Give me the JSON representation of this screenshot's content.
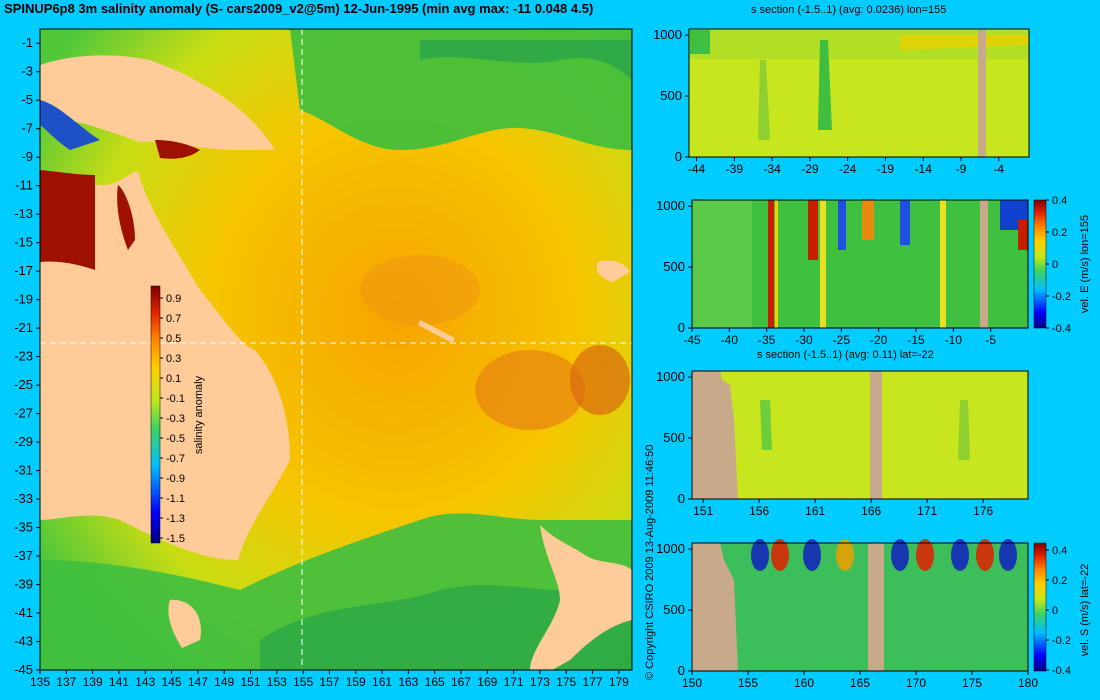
{
  "title": "SPINUP6p8 3m salinity anomaly (S- cars2009_v2@5m) 12-Jun-1995 (min avg max: -11 0.048 4.5)",
  "copyright": "© Copyright CSIRO 2009   13-Aug-2009 11:46:50",
  "colors": {
    "background": "#00CCFF",
    "land": "#FFCC99",
    "section_mask": "#C8A98A"
  },
  "chart_data": [
    {
      "type": "heatmap",
      "title": "SPINUP6p8 3m salinity anomaly (S- cars2009_v2@5m) 12-Jun-1995 (min avg max: -11 0.048 4.5)",
      "xlabel": "",
      "ylabel": "",
      "xlim": [
        135,
        180
      ],
      "ylim": [
        -45,
        0
      ],
      "x_ticks": [
        135,
        137,
        139,
        141,
        143,
        145,
        147,
        149,
        151,
        153,
        155,
        157,
        159,
        161,
        163,
        165,
        167,
        169,
        171,
        173,
        175,
        177,
        179
      ],
      "y_ticks": [
        -1,
        -3,
        -5,
        -7,
        -9,
        -11,
        -13,
        -15,
        -17,
        -19,
        -21,
        -23,
        -25,
        -27,
        -29,
        -31,
        -33,
        -35,
        -37,
        -39,
        -41,
        -43,
        -45
      ],
      "colorbar": {
        "label": "salinity anomaly",
        "ticks": [
          0.9,
          0.7,
          0.5,
          0.3,
          0.1,
          -0.1,
          -0.3,
          -0.5,
          -0.7,
          -0.9,
          -1.1,
          -1.3,
          -1.5
        ],
        "range": [
          -1.5,
          0.9
        ]
      },
      "section_lines": {
        "lon": 155,
        "lat": -22
      },
      "summary": {
        "min": -11,
        "avg": 0.048,
        "max": 4.5
      },
      "grid": false
    },
    {
      "type": "heatmap",
      "title": "s section (-1.5..1) (avg: 0.0236) lon=155",
      "xlim": [
        -45,
        0
      ],
      "ylim": [
        1050,
        0
      ],
      "x_ticks": [
        -44,
        -39,
        -34,
        -29,
        -24,
        -19,
        -14,
        -9,
        -4
      ],
      "y_ticks": [
        0,
        500,
        1000
      ],
      "avg": 0.0236
    },
    {
      "type": "heatmap",
      "title": "",
      "xlim": [
        -45,
        0
      ],
      "ylim": [
        1050,
        0
      ],
      "x_ticks": [
        -45,
        -40,
        -35,
        -30,
        -25,
        -20,
        -15,
        -10,
        -5
      ],
      "y_ticks": [
        0,
        500,
        1000
      ],
      "colorbar": {
        "label": "vel. E (m/s) lon=155",
        "ticks": [
          0.4,
          0.2,
          0,
          -0.2,
          -0.4
        ],
        "range": [
          -0.4,
          0.4
        ]
      }
    },
    {
      "type": "heatmap",
      "title": "s section (-1.5..1) (avg: 0.11) lat=-22",
      "xlim": [
        150,
        180
      ],
      "ylim": [
        1050,
        0
      ],
      "x_ticks": [
        151,
        156,
        161,
        166,
        171,
        176
      ],
      "y_ticks": [
        0,
        500,
        1000
      ],
      "avg": 0.11
    },
    {
      "type": "heatmap",
      "title": "",
      "xlim": [
        150,
        180
      ],
      "ylim": [
        1050,
        0
      ],
      "x_ticks": [
        150,
        155,
        160,
        165,
        170,
        175,
        180
      ],
      "y_ticks": [
        0,
        500,
        1000
      ],
      "colorbar": {
        "label": "vel. S (m/s) lat=-22",
        "ticks": [
          0.4,
          0.2,
          0,
          -0.2,
          -0.4
        ],
        "range": [
          -0.4,
          0.4
        ]
      }
    }
  ]
}
